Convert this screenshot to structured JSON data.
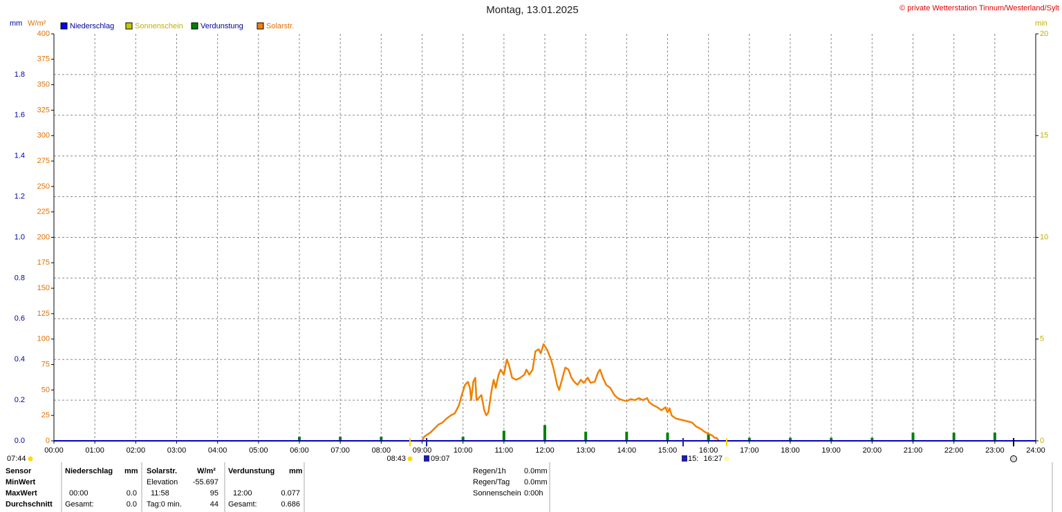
{
  "chart_data": {
    "type": "line",
    "title": "Montag, 13.01.2025",
    "copyright": "© private Wetterstation Tinnum/Westerland/Sylt",
    "ylabel": "mm",
    "y2label": "W/m²",
    "y3label": "min",
    "xlim": [
      0,
      24
    ],
    "xticks": [
      {
        "value": 0,
        "label": "00:00"
      },
      {
        "value": 1,
        "label": "01:00"
      },
      {
        "value": 2,
        "label": "02:00"
      },
      {
        "value": 3,
        "label": "03:00"
      },
      {
        "value": 4,
        "label": "04:00"
      },
      {
        "value": 5,
        "label": "05:00"
      },
      {
        "value": 6,
        "label": "06:00"
      },
      {
        "value": 7,
        "label": "07:00"
      },
      {
        "value": 8,
        "label": "08:00"
      },
      {
        "value": 9,
        "label": "09:00"
      },
      {
        "value": 10,
        "label": "10:00"
      },
      {
        "value": 11,
        "label": "11:00"
      },
      {
        "value": 12,
        "label": "12:00"
      },
      {
        "value": 13,
        "label": "13:00"
      },
      {
        "value": 14,
        "label": "14:00"
      },
      {
        "value": 15,
        "label": "15:00"
      },
      {
        "value": 16,
        "label": "16:00"
      },
      {
        "value": 17,
        "label": "17:00"
      },
      {
        "value": 18,
        "label": "18:00"
      },
      {
        "value": 19,
        "label": "19:00"
      },
      {
        "value": 20,
        "label": "20:00"
      },
      {
        "value": 21,
        "label": "21:00"
      },
      {
        "value": 22,
        "label": "22:00"
      },
      {
        "value": 23,
        "label": "23:00"
      },
      {
        "value": 24,
        "label": "24:00"
      }
    ],
    "ylim": [
      0,
      2
    ],
    "yticks": [
      {
        "value": 0,
        "label": "0.0"
      },
      0.2,
      0.4,
      0.6,
      0.8,
      {
        "value": 1,
        "label": "1.0"
      },
      1.2,
      1.4,
      1.6,
      1.8
    ],
    "y2lim": [
      0,
      400
    ],
    "y2ticks": [
      0,
      25,
      50,
      75,
      100,
      125,
      150,
      175,
      200,
      225,
      250,
      275,
      300,
      325,
      350,
      375,
      400
    ],
    "y3lim": [
      0,
      20
    ],
    "y3ticks": [
      0,
      5,
      10,
      15,
      20
    ],
    "grid": true,
    "series": [
      {
        "name": "Niederschlag",
        "color": "#0000ff"
      },
      {
        "name": "Sonnenschein",
        "color": "#c8c800"
      },
      {
        "name": "Verdunstung",
        "color": "#008000",
        "x": [
          6,
          7,
          8,
          10,
          11,
          12,
          13,
          14,
          15,
          16,
          17,
          18,
          19,
          20,
          21,
          22,
          23
        ],
        "values": [
          0.02,
          0.02,
          0.02,
          0.02,
          0.05,
          0.077,
          0.045,
          0.045,
          0.04,
          0.035,
          0.015,
          0.015,
          0.015,
          0.015,
          0.04,
          0.04,
          0.04
        ]
      },
      {
        "name": "Solarstr.",
        "color": "#f08000",
        "axis": "y2",
        "x": [
          8.95,
          9.0,
          9.05,
          9.12,
          9.2,
          9.3,
          9.4,
          9.5,
          9.6,
          9.7,
          9.8,
          9.9,
          9.97,
          10.05,
          10.12,
          10.17,
          10.2,
          10.25,
          10.3,
          10.33,
          10.38,
          10.45,
          10.52,
          10.57,
          10.62,
          10.7,
          10.75,
          10.8,
          10.87,
          10.92,
          11.0,
          11.07,
          11.12,
          11.2,
          11.3,
          11.4,
          11.5,
          11.55,
          11.62,
          11.7,
          11.77,
          11.85,
          11.9,
          11.97,
          12.05,
          12.15,
          12.22,
          12.3,
          12.35,
          12.42,
          12.5,
          12.58,
          12.65,
          12.72,
          12.8,
          12.88,
          12.95,
          13.05,
          13.12,
          13.22,
          13.3,
          13.35,
          13.42,
          13.5,
          13.6,
          13.7,
          13.78,
          13.9,
          14.0,
          14.1,
          14.2,
          14.3,
          14.4,
          14.5,
          14.55,
          14.65,
          14.75,
          14.85,
          14.95,
          15.0,
          15.05,
          15.1,
          15.2,
          15.3,
          15.4,
          15.5,
          15.6,
          15.7,
          15.8,
          15.9,
          16.0,
          16.1,
          16.15,
          16.2,
          16.25
        ],
        "values": [
          0,
          0,
          4,
          6,
          8,
          12,
          16,
          18,
          22,
          25,
          27,
          35,
          45,
          55,
          58,
          52,
          40,
          58,
          62,
          40,
          42,
          45,
          30,
          25,
          28,
          50,
          60,
          52,
          65,
          70,
          65,
          80,
          75,
          62,
          60,
          62,
          65,
          70,
          65,
          70,
          88,
          90,
          86,
          95,
          90,
          80,
          70,
          55,
          50,
          60,
          72,
          70,
          62,
          58,
          55,
          60,
          57,
          62,
          57,
          58,
          67,
          70,
          62,
          55,
          52,
          45,
          42,
          40,
          39,
          41,
          40,
          42,
          40,
          42,
          38,
          35,
          33,
          30,
          33,
          28,
          32,
          25,
          22,
          21,
          20,
          19,
          18,
          14,
          12,
          9,
          7,
          5,
          3,
          3,
          0
        ]
      }
    ],
    "sun_times": [
      "07:44",
      "08:43",
      "09:07",
      "15:",
      "16:27"
    ],
    "stats": {
      "row_labels": [
        "Sensor",
        "MinWert",
        "MaxWert",
        "Durchschnitt"
      ],
      "niederschlag": {
        "title": "Niederschlag",
        "unit": "mm",
        "max_time": "00:00",
        "max": "0.0",
        "total_label": "Gesamt:",
        "total": "0.0"
      },
      "solar": {
        "title": "Solarstr.",
        "unit": "W/m²",
        "min_label": "Elevation",
        "min": -55.697,
        "max_time": "11:58",
        "max": 95,
        "avg_label": "Tag:0 min.",
        "avg": 44
      },
      "verdunstung": {
        "title": "Verdunstung",
        "unit": "mm",
        "max_time": "12:00",
        "max": 0.077,
        "total_label": "Gesamt:",
        "total": 0.686
      },
      "info": [
        [
          "Regen/1h",
          "0.0mm"
        ],
        [
          "Regen/Tag",
          "0.0mm"
        ],
        [
          "Sonnenschein",
          "0:00h"
        ]
      ]
    }
  }
}
